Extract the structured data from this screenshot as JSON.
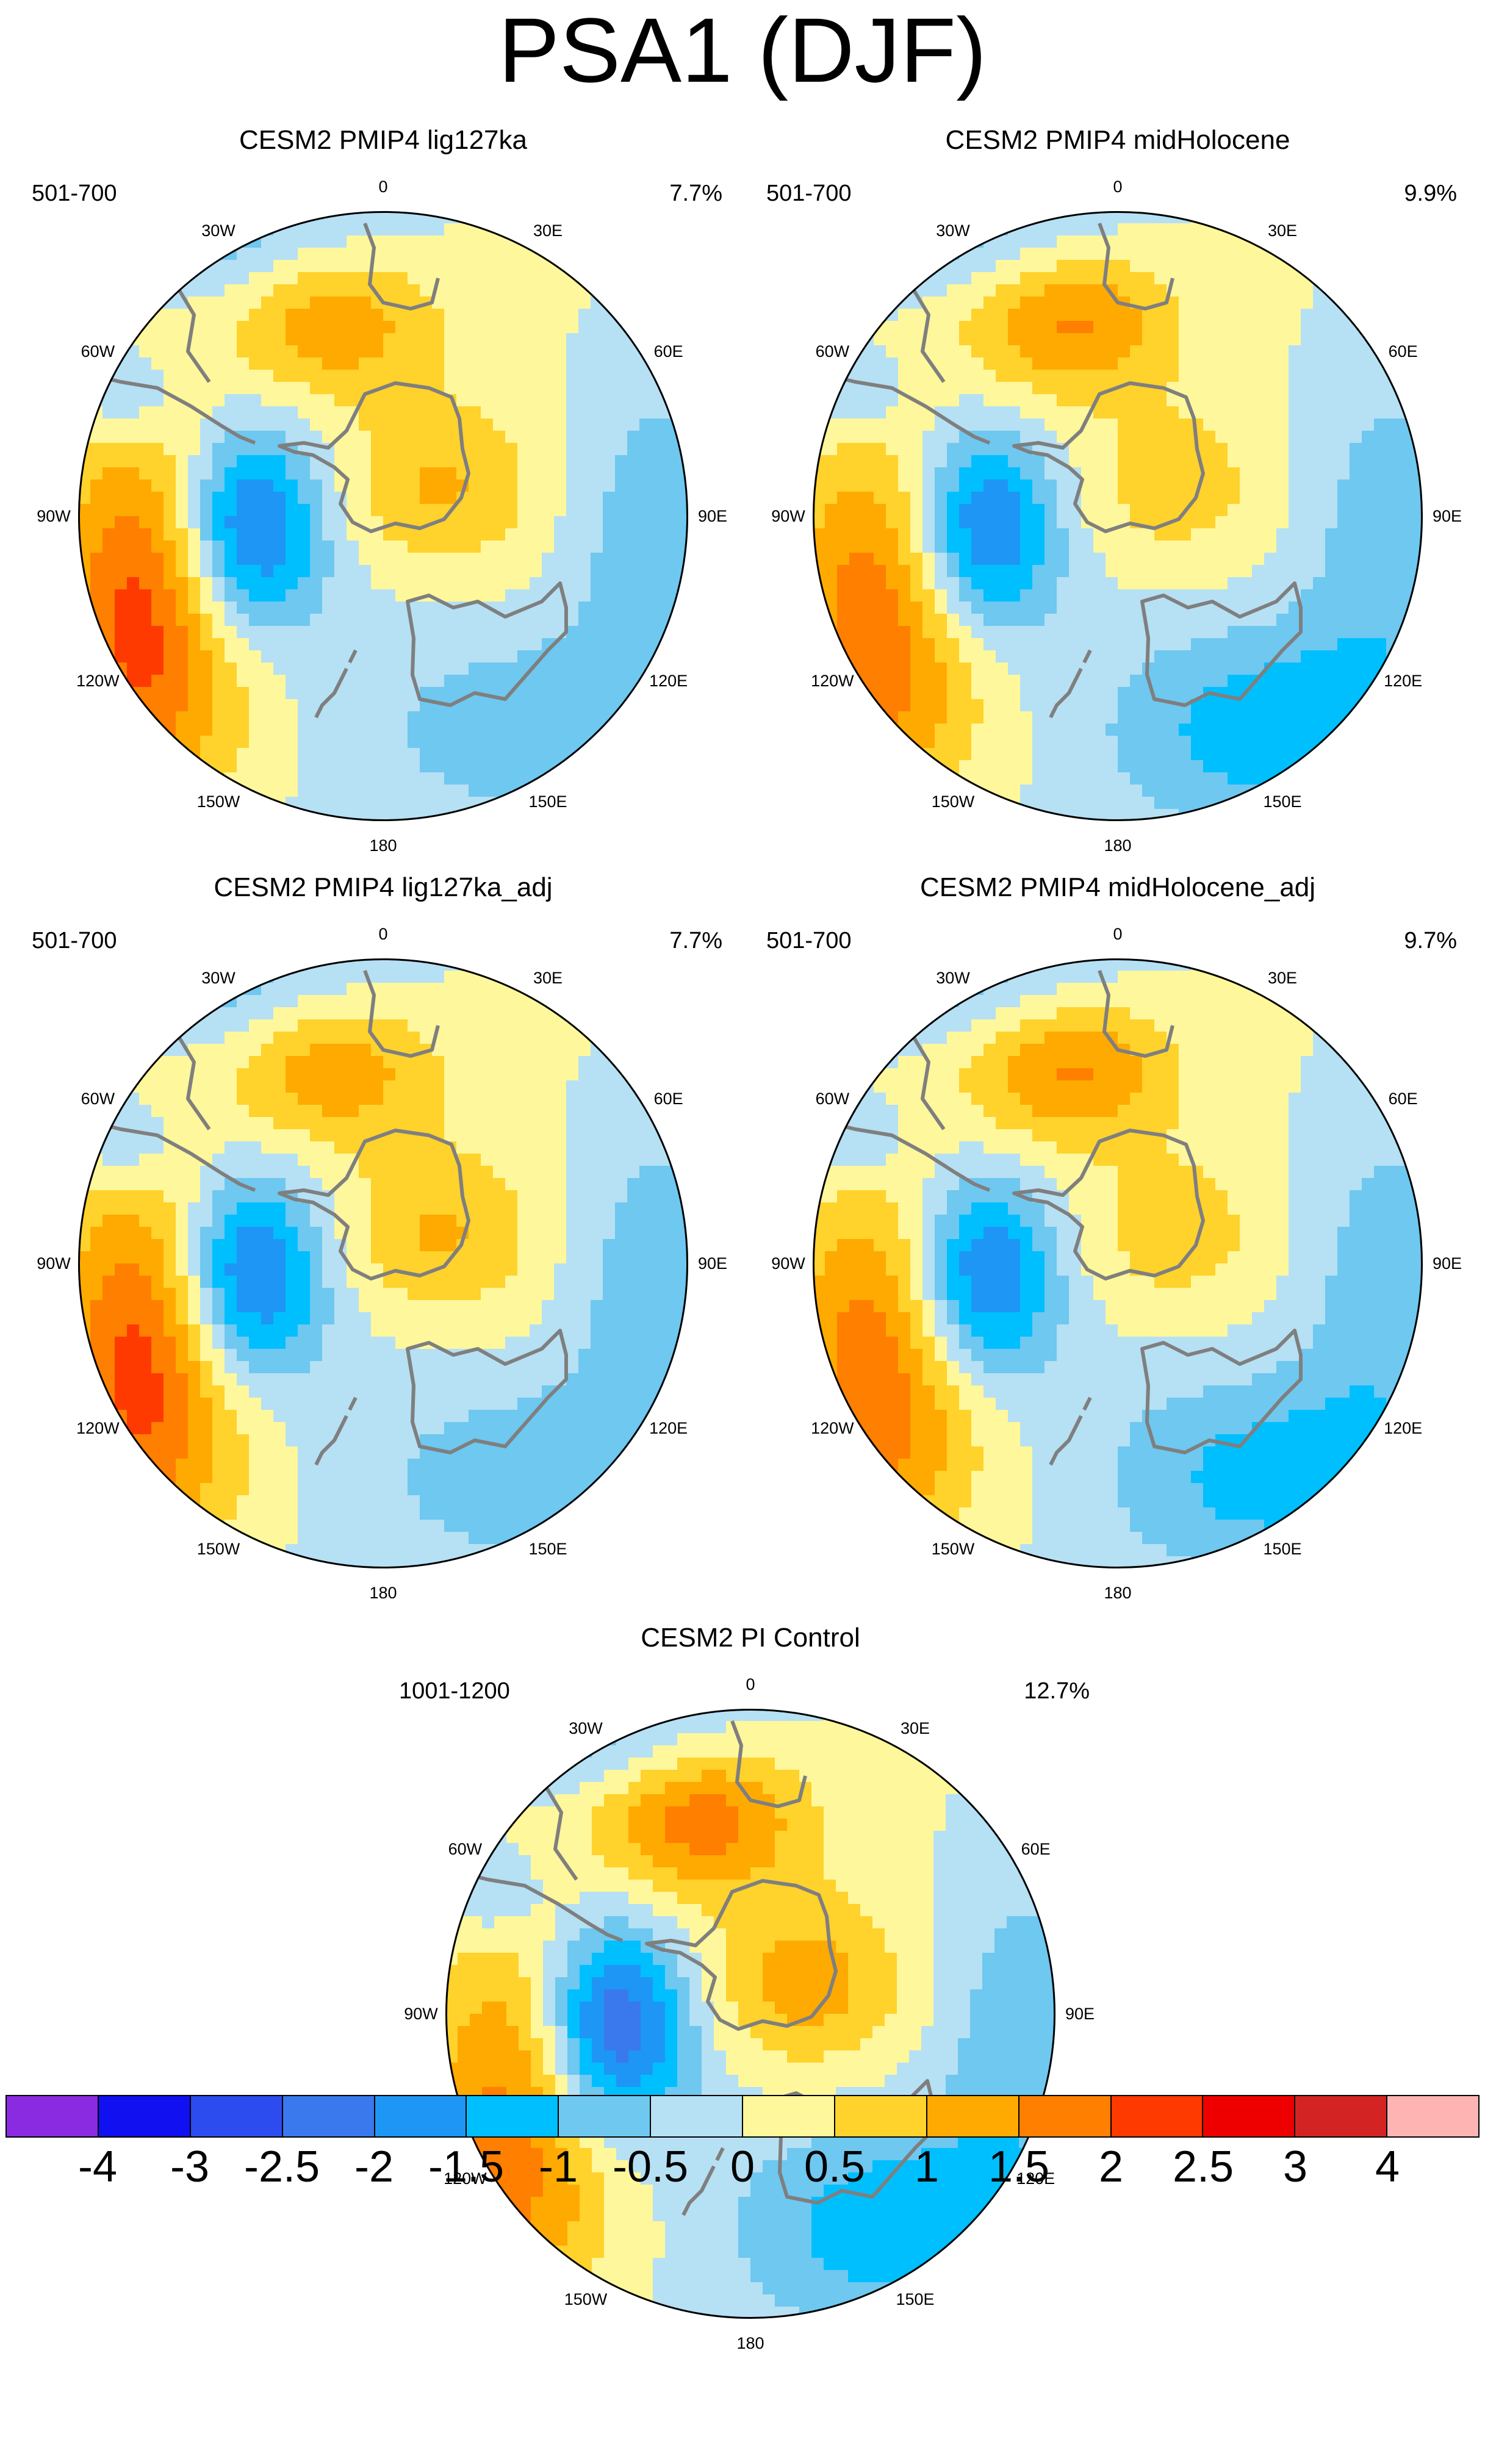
{
  "figure": {
    "title": "PSA1 (DJF)"
  },
  "panels": [
    {
      "title": "CESM2 PMIP4 lig127ka",
      "years": "501-700",
      "variance": "7.7%",
      "pattern": {
        "low_strength": -2.3,
        "east_low": -0.9,
        "high_fan": 1.5,
        "high_pac": 1.9,
        "high_ant": 1.1,
        "ring_amp": 0.35
      }
    },
    {
      "title": "CESM2 PMIP4 midHolocene",
      "years": "501-700",
      "variance": "9.9%",
      "pattern": {
        "low_strength": -2.2,
        "east_low": -1.4,
        "high_fan": 1.7,
        "high_pac": 1.6,
        "high_ant": 0.8,
        "ring_amp": 0.25
      }
    },
    {
      "title": "CESM2 PMIP4 lig127ka_adj",
      "years": "501-700",
      "variance": "7.7%",
      "pattern": {
        "low_strength": -2.3,
        "east_low": -0.9,
        "high_fan": 1.5,
        "high_pac": 1.9,
        "high_ant": 1.1,
        "ring_amp": 0.35
      }
    },
    {
      "title": "CESM2 PMIP4 midHolocene_adj",
      "years": "501-700",
      "variance": "9.7%",
      "pattern": {
        "low_strength": -2.2,
        "east_low": -1.3,
        "high_fan": 1.7,
        "high_pac": 1.6,
        "high_ant": 0.8,
        "ring_amp": 0.25
      }
    },
    {
      "title": "CESM2 PI Control",
      "years": "1001-1200",
      "variance": "12.7%",
      "pattern": {
        "low_strength": -2.6,
        "east_low": -1.5,
        "high_fan": 1.9,
        "high_pac": 1.4,
        "high_ant": 1.3,
        "ring_amp": 0.3
      }
    }
  ],
  "longitude_labels": [
    "0",
    "30E",
    "60E",
    "90E",
    "120E",
    "150E",
    "180",
    "150W",
    "120W",
    "90W",
    "60W",
    "30W"
  ],
  "colorbar": {
    "colors": [
      "#8a2be2",
      "#1010f0",
      "#2d4cf0",
      "#3a78ee",
      "#1e96f5",
      "#00bfff",
      "#6ec8f0",
      "#b6e0f4",
      "#fff79b",
      "#ffd22c",
      "#ffaa00",
      "#ff7f00",
      "#ff3a00",
      "#ee0000",
      "#d42323",
      "#ffb4b4"
    ],
    "levels": [
      -4,
      -3,
      -2.5,
      -2,
      -1.5,
      -1,
      -0.5,
      0,
      0.5,
      1,
      1.5,
      2,
      2.5,
      3,
      4
    ],
    "tick_labels": [
      "-4",
      "-3",
      "-2.5",
      "-2",
      "-1.5",
      "-1",
      "-0.5",
      "0",
      "0.5",
      "1",
      "1.5",
      "2",
      "2.5",
      "3",
      "4"
    ]
  },
  "chart_data": {
    "type": "heatmap",
    "projection": "south polar stereographic",
    "variable": "PSA1 (DJF) EOF pattern",
    "colorbar_levels": [
      -4,
      -3,
      -2.5,
      -2,
      -1.5,
      -1,
      -0.5,
      0,
      0.5,
      1,
      1.5,
      2,
      2.5,
      3,
      4
    ],
    "maps": [
      {
        "title": "CESM2 PMIP4 lig127ka",
        "years": "501-700",
        "variance_explained": "7.7%"
      },
      {
        "title": "CESM2 PMIP4 midHolocene",
        "years": "501-700",
        "variance_explained": "9.9%"
      },
      {
        "title": "CESM2 PMIP4 lig127ka_adj",
        "years": "501-700",
        "variance_explained": "7.7%"
      },
      {
        "title": "CESM2 PMIP4 midHolocene_adj",
        "years": "501-700",
        "variance_explained": "9.7%"
      },
      {
        "title": "CESM2 PI Control",
        "years": "1001-1200",
        "variance_explained": "12.7%"
      }
    ]
  }
}
